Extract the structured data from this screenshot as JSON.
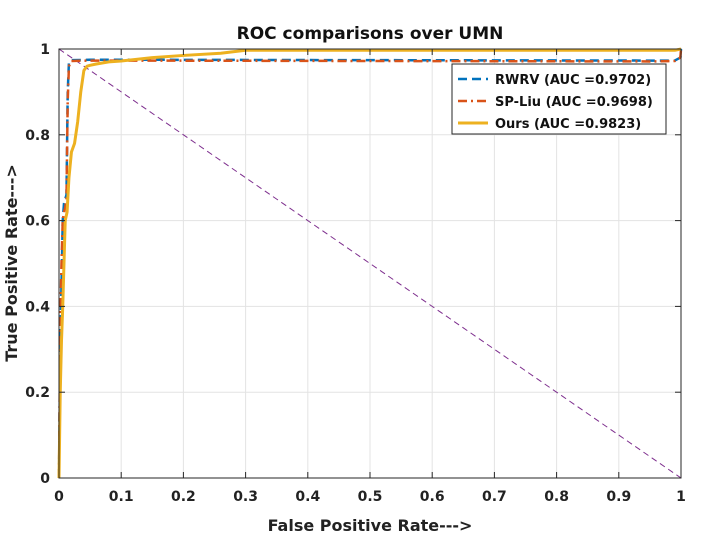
{
  "chart_data": {
    "type": "line",
    "title": "ROC comparisons over UMN",
    "xlabel": "False Positive Rate--->",
    "ylabel": "True Positive Rate--->",
    "xlim": [
      0,
      1
    ],
    "ylim": [
      0,
      1
    ],
    "xticks": [
      "0",
      "0.1",
      "0.2",
      "0.3",
      "0.4",
      "0.5",
      "0.6",
      "0.7",
      "0.8",
      "0.9",
      "1"
    ],
    "yticks": [
      "0",
      "0.2",
      "0.4",
      "0.6",
      "0.8",
      "1"
    ],
    "grid": true,
    "legend_position": "top-right",
    "reference_line": {
      "x": [
        0,
        1
      ],
      "y": [
        1,
        0
      ],
      "color": "#7e2f8e",
      "style": "dashed"
    },
    "series": [
      {
        "name": "RWRV (AUC =0.9702)",
        "color": "#0072bd",
        "style": "dashed",
        "x": [
          0,
          0.002,
          0.004,
          0.006,
          0.008,
          0.01,
          0.012,
          0.014,
          0.016,
          0.02,
          0.05,
          0.1,
          0.5,
          0.95,
          0.99,
          0.999,
          1
        ],
        "y": [
          0,
          0.3,
          0.45,
          0.6,
          0.64,
          0.65,
          0.66,
          0.9,
          0.97,
          0.974,
          0.975,
          0.975,
          0.974,
          0.973,
          0.973,
          0.98,
          1
        ]
      },
      {
        "name": "SP-Liu (AUC =0.9698)",
        "color": "#d95319",
        "style": "dashdot",
        "x": [
          0,
          0.002,
          0.004,
          0.006,
          0.008,
          0.01,
          0.012,
          0.014,
          0.016,
          0.02,
          0.05,
          0.1,
          0.5,
          0.95,
          0.99,
          0.999,
          1
        ],
        "y": [
          0,
          0.35,
          0.5,
          0.6,
          0.62,
          0.63,
          0.65,
          0.88,
          0.96,
          0.972,
          0.973,
          0.973,
          0.972,
          0.971,
          0.972,
          0.98,
          1
        ]
      },
      {
        "name": "Ours (AUC =0.9823)",
        "color": "#edb120",
        "style": "solid",
        "x": [
          0,
          0.001,
          0.002,
          0.004,
          0.006,
          0.008,
          0.01,
          0.013,
          0.016,
          0.02,
          0.025,
          0.03,
          0.035,
          0.04,
          0.045,
          0.05,
          0.06,
          0.08,
          0.1,
          0.15,
          0.2,
          0.26,
          0.3,
          0.5,
          0.8,
          0.99,
          1
        ],
        "y": [
          0,
          0.1,
          0.2,
          0.32,
          0.4,
          0.5,
          0.6,
          0.62,
          0.7,
          0.76,
          0.78,
          0.83,
          0.9,
          0.95,
          0.96,
          0.962,
          0.965,
          0.97,
          0.972,
          0.98,
          0.985,
          0.99,
          0.997,
          0.997,
          0.997,
          0.997,
          1
        ]
      }
    ]
  }
}
